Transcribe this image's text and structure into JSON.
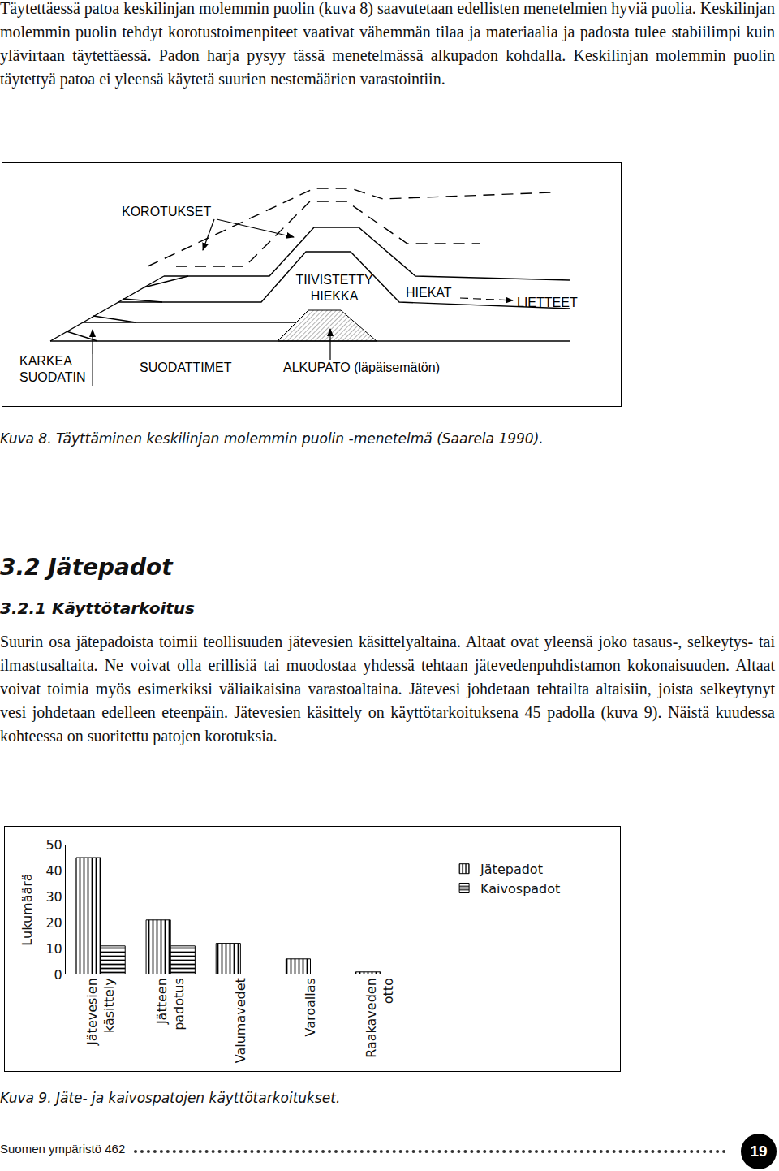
{
  "paragraph1": "Täytettäessä patoa keskilinjan molemmin puolin (kuva 8) saavutetaan edellisten menetelmien hyviä puolia. Keskilinjan molemmin puolin tehdyt korotustoimenpiteet vaativat vähemmän tilaa ja materiaalia ja padosta tulee stabiilimpi kuin ylävirtaan täytettäessä. Padon harja pysyy tässä menetelmässä alkupadon kohdalla. Keskilinjan molemmin puolin täytettyä patoa ei yleensä käytetä suurien nestemäärien varastointiin.",
  "figure8": {
    "labels": {
      "korotukset": "KOROTUKSET",
      "tiivistetty_hiekka": [
        "TIIVISTETTY",
        "HIEKKA"
      ],
      "hiekat": "HIEKAT",
      "lietteet": "LIETTEET",
      "karkea_suodatin": [
        "KARKEA",
        "SUODATIN"
      ],
      "suodattimet": "SUODATTIMET",
      "alkupato": "ALKUPATO (läpäisemätön)"
    },
    "caption": "Kuva 8. Täyttäminen keskilinjan molemmin puolin -menetelmä (Saarela 1990)."
  },
  "section": {
    "heading": "3.2 Jätepadot",
    "subheading": "3.2.1 Käyttötarkoitus"
  },
  "paragraph2": "Suurin osa jätepadoista toimii teollisuuden jätevesien käsittelyaltaina. Altaat ovat yleensä joko tasaus-, selkeytys- tai ilmastusaltaita. Ne voivat olla erillisiä tai muodostaa yhdessä tehtaan jätevedenpuhdistamon kokonaisuuden. Altaat voivat toimia myös esimerkiksi väliaikaisina varastoaltaina. Jätevesi johdetaan tehtailta altaisiin, joista selkeytynyt vesi johdetaan edelleen eteenpäin. Jätevesien käsittely on käyttötarkoituksena 45 padolla (kuva 9). Näistä kuudessa kohteessa on suoritettu patojen korotuksia.",
  "chart_data": {
    "type": "bar",
    "y_label": "Lukumäärä",
    "categories": [
      "Jätevesien käsittely",
      "Jätteen padotus",
      "Valumavedet",
      "Varoallas",
      "Raakaveden otto"
    ],
    "series": [
      {
        "name": "Jätepadot",
        "color": "#000000",
        "marker": "vertical",
        "values": [
          45,
          21,
          12,
          6,
          1
        ]
      },
      {
        "name": "Kaivospadot",
        "color": "#000000",
        "marker": "horizontal",
        "values": [
          11,
          11,
          0,
          0,
          0
        ]
      }
    ],
    "ylim": [
      0,
      50
    ],
    "yticks": [
      0,
      10,
      20,
      30,
      40,
      50
    ],
    "grid": false,
    "legend": "right"
  },
  "figure9_caption": "Kuva 9. Jäte- ja kaivospatojen käyttötarkoitukset.",
  "footer": {
    "publication": "Suomen ympäristö 462",
    "page": 19
  }
}
